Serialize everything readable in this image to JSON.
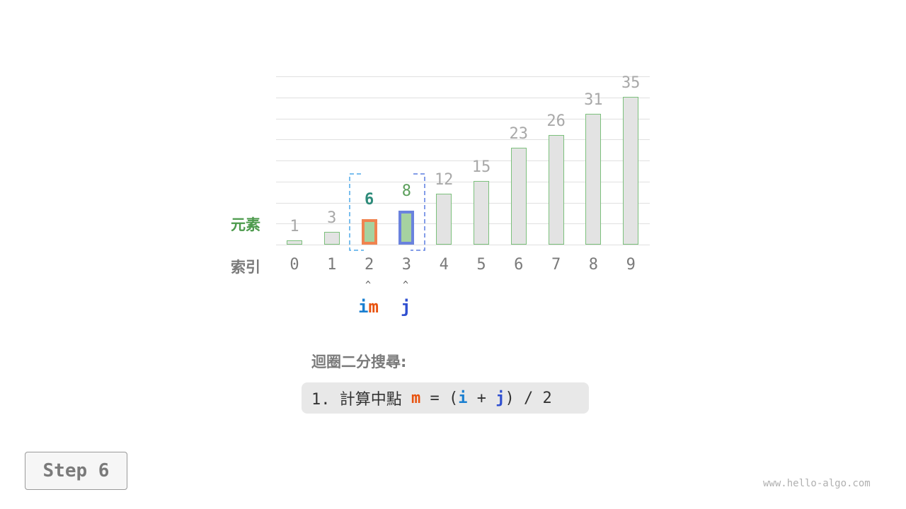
{
  "labels": {
    "element": "元素",
    "index": "索引"
  },
  "array": [
    1,
    3,
    6,
    8,
    12,
    15,
    23,
    26,
    31,
    35
  ],
  "indices": [
    "0",
    "1",
    "2",
    "3",
    "4",
    "5",
    "6",
    "7",
    "8",
    "9"
  ],
  "pointers": {
    "i": "i",
    "m": "m",
    "j": "j",
    "i_index": 2,
    "m_index": 2,
    "j_index": 3
  },
  "highlight": {
    "m_index": 2,
    "j_index": 3,
    "window": [
      2,
      3
    ]
  },
  "colors": {
    "i": "#1a7fd0",
    "m": "#e8520e",
    "j": "#2f4fd0",
    "m_border": "#f0834f",
    "j_border": "#6a82de",
    "active_fill": "#a6d2a0",
    "bar_fill": "#e3e3e3",
    "bar_border": "#7cc07c",
    "element_label": "#4c9a4c",
    "m_value": "#2e8b7a",
    "j_value": "#5a9e5a"
  },
  "caption": {
    "title": "迴圈二分搜尋:",
    "step_prefix": "1. 計算中點 ",
    "m": "m",
    "eq": " = (",
    "i": "i",
    "plus": " + ",
    "j": "j",
    "tail": ") / 2"
  },
  "step": "Step 6",
  "watermark": "www.hello-algo.com"
}
